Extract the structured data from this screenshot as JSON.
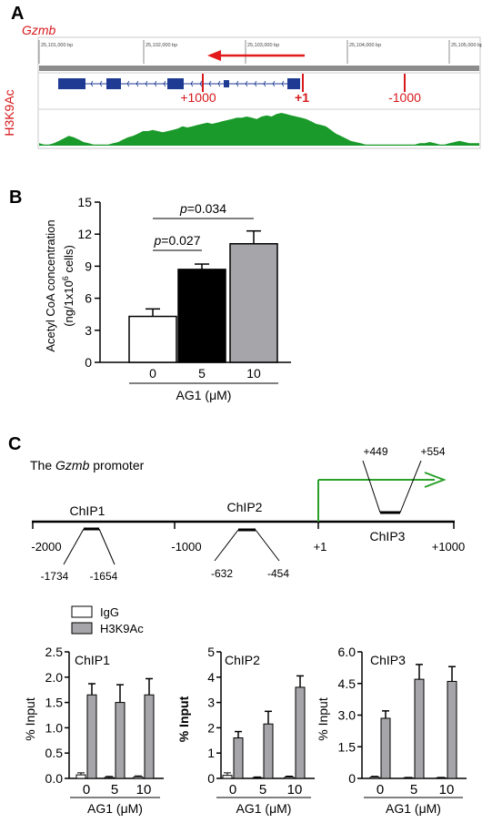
{
  "panel_a": {
    "letter": "A",
    "gene": "Gzmb",
    "track_label": "H3K9Ac",
    "ruler_ticks": [
      "25,101,000 bp",
      "25,102,000 bp",
      "25,103,000 bp",
      "25,104,000 bp",
      "25,105,000 bp"
    ],
    "markers": [
      "+1000",
      "+1",
      "-1000"
    ],
    "colors": {
      "gene_label": "#d7191c",
      "arrow": "#e31a1c",
      "exon": "#1f3a93",
      "coverage": "#1a9a2a"
    },
    "coverage": [
      2,
      1,
      1,
      2,
      4,
      6,
      8,
      7,
      5,
      3,
      2,
      1,
      1,
      1,
      1,
      2,
      3,
      5,
      7,
      8,
      10,
      12,
      12,
      13,
      12,
      11,
      12,
      13,
      14,
      16,
      15,
      16,
      17,
      18,
      19,
      18,
      19,
      20,
      21,
      22,
      23,
      23,
      24,
      23,
      22,
      24,
      25,
      24,
      26,
      27,
      26,
      25,
      24,
      23,
      22,
      20,
      18,
      17,
      16,
      13,
      10,
      8,
      6,
      4,
      3,
      2,
      1,
      1,
      1,
      1,
      1,
      1,
      1,
      1,
      1,
      1,
      1,
      2,
      2,
      3,
      2,
      1,
      1,
      2,
      3,
      4,
      3,
      2,
      2,
      2
    ]
  },
  "panel_b": {
    "letter": "B",
    "chart_data": {
      "type": "bar",
      "categories": [
        "0",
        "5",
        "10"
      ],
      "values": [
        4.3,
        8.7,
        11.1
      ],
      "errors": [
        0.7,
        0.5,
        1.2
      ],
      "bar_colors": [
        "#ffffff",
        "#000000",
        "#a6a6aa"
      ],
      "ylabel": "Acetyl CoA concentration",
      "ylabel2_pre": "(ng/1x10",
      "ylabel2_sup": "6",
      "ylabel2_post": " cells)",
      "xlabel": "AG1 (μM)",
      "ylim": [
        0,
        15
      ],
      "yticks": [
        "0",
        "3",
        "6",
        "9",
        "12",
        "15"
      ],
      "significance": [
        {
          "p_label": "p",
          "value": "=0.027",
          "from": 0,
          "to": 1
        },
        {
          "p_label": "p",
          "value": "=0.034",
          "from": 0,
          "to": 2
        }
      ]
    }
  },
  "panel_c": {
    "letter": "C",
    "promoter_label_pre": "The ",
    "promoter_label_gene": "Gzmb",
    "promoter_label_post": " promoter",
    "map_ticks": [
      "-2000",
      "-1000",
      "+1",
      "+1000"
    ],
    "amplicons": [
      {
        "name": "ChIP1",
        "left": "-1734",
        "right": "-1654"
      },
      {
        "name": "ChIP2",
        "left": "-632",
        "right": "-454"
      },
      {
        "name": "ChIP3",
        "left": "+449",
        "right": "+554"
      }
    ],
    "legend": [
      "IgG",
      "H3K9Ac"
    ],
    "chart_data": [
      {
        "type": "bar",
        "title": "ChIP1",
        "ylabel": "% Input",
        "xlabel": "AG1 (μM)",
        "categories": [
          "0",
          "5",
          "10"
        ],
        "ylim": [
          0,
          2.5
        ],
        "yticks": [
          "0.0",
          "0.5",
          "1.0",
          "1.5",
          "2.0",
          "2.5"
        ],
        "series": [
          {
            "name": "IgG",
            "values": [
              0.07,
              0.02,
              0.03
            ],
            "errors": [
              0.04,
              0.02,
              0.02
            ]
          },
          {
            "name": "H3K9Ac",
            "values": [
              1.65,
              1.5,
              1.65
            ],
            "errors": [
              0.22,
              0.35,
              0.32
            ]
          }
        ]
      },
      {
        "type": "bar",
        "title": "ChIP2",
        "ylabel": "% Input",
        "xlabel": "AG1 (μM)",
        "categories": [
          "0",
          "5",
          "10"
        ],
        "ylim": [
          0,
          5
        ],
        "yticks": [
          "0",
          "1",
          "2",
          "3",
          "4",
          "5"
        ],
        "series": [
          {
            "name": "IgG",
            "values": [
              0.12,
              0.03,
              0.05
            ],
            "errors": [
              0.1,
              0.03,
              0.04
            ]
          },
          {
            "name": "H3K9Ac",
            "values": [
              1.6,
              2.15,
              3.6
            ],
            "errors": [
              0.25,
              0.5,
              0.45
            ]
          }
        ]
      },
      {
        "type": "bar",
        "title": "ChIP3",
        "ylabel": "% Input",
        "xlabel": "AG1 (μM)",
        "categories": [
          "0",
          "5",
          "10"
        ],
        "ylim": [
          0,
          6
        ],
        "yticks": [
          "0",
          "1.5",
          "3.0",
          "4.5",
          "6.0"
        ],
        "series": [
          {
            "name": "IgG",
            "values": [
              0.06,
              0.03,
              0.03
            ],
            "errors": [
              0.04,
              0.02,
              0.02
            ]
          },
          {
            "name": "H3K9Ac",
            "values": [
              2.85,
              4.7,
              4.6
            ],
            "errors": [
              0.35,
              0.7,
              0.7
            ]
          }
        ]
      }
    ],
    "colors": {
      "igg": "#ffffff",
      "h3k9ac": "#a6a6aa",
      "tss_arrow": "#2aa02a"
    }
  }
}
